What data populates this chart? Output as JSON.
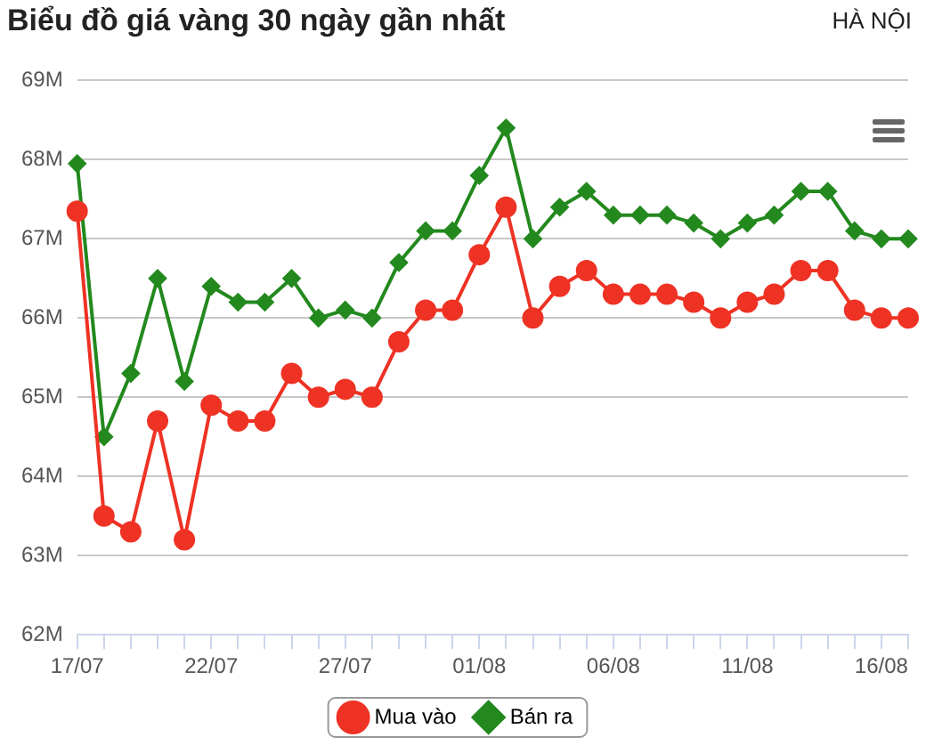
{
  "chart_data": {
    "type": "line",
    "title": "Biểu đồ giá vàng 30 ngày gần nhất",
    "subtitle": "HÀ NỘI",
    "categories": [
      "17/07",
      null,
      null,
      null,
      null,
      "22/07",
      null,
      null,
      null,
      null,
      "27/07",
      null,
      null,
      null,
      null,
      "01/08",
      null,
      null,
      null,
      null,
      "06/08",
      null,
      null,
      null,
      null,
      "11/08",
      null,
      null,
      null,
      null,
      "16/08",
      null
    ],
    "series": [
      {
        "name": "Mua vào",
        "color": "#ee3224",
        "marker": "circle",
        "values": [
          67.35,
          63.5,
          63.3,
          64.7,
          63.2,
          64.9,
          64.7,
          64.7,
          65.3,
          65.0,
          65.1,
          65.0,
          65.7,
          66.1,
          66.1,
          66.8,
          67.4,
          66.0,
          66.4,
          66.6,
          66.3,
          66.3,
          66.3,
          66.2,
          66.0,
          66.2,
          66.3,
          66.6,
          66.6,
          66.1,
          66.0,
          66.0
        ]
      },
      {
        "name": "Bán ra",
        "color": "#23891e",
        "marker": "diamond",
        "values": [
          67.95,
          64.5,
          65.3,
          66.5,
          65.2,
          66.4,
          66.2,
          66.2,
          66.5,
          66.0,
          66.1,
          66.0,
          66.7,
          67.1,
          67.1,
          67.8,
          68.4,
          67.0,
          67.4,
          67.6,
          67.3,
          67.3,
          67.3,
          67.2,
          67.0,
          67.2,
          67.3,
          67.6,
          67.6,
          67.1,
          67.0,
          67.0
        ]
      }
    ],
    "ylim": [
      62,
      69
    ],
    "yticks": [
      {
        "value": 62,
        "label": "62M"
      },
      {
        "value": 63,
        "label": "63M"
      },
      {
        "value": 64,
        "label": "64M"
      },
      {
        "value": 65,
        "label": "65M"
      },
      {
        "value": 66,
        "label": "66M"
      },
      {
        "value": 67,
        "label": "67M"
      },
      {
        "value": 68,
        "label": "68M"
      },
      {
        "value": 69,
        "label": "69M"
      }
    ],
    "grid": "y",
    "legend": "bottom",
    "line_style": "solid"
  }
}
